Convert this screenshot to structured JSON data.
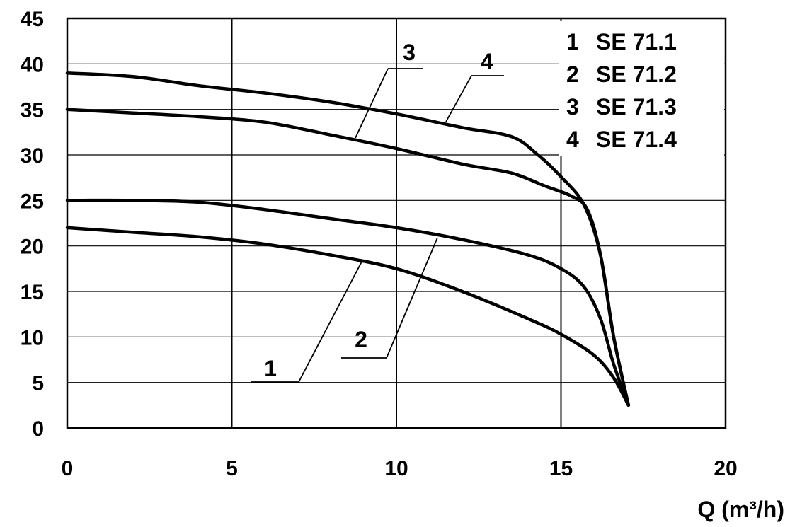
{
  "chart_data": {
    "type": "line",
    "title": "",
    "xlabel": "Q (m³/h)",
    "ylabel": "",
    "xlim": [
      0,
      20
    ],
    "ylim": [
      0,
      45
    ],
    "x_ticks": [
      "0",
      "5",
      "10",
      "15",
      "20"
    ],
    "y_ticks": [
      "0",
      "5",
      "10",
      "15",
      "20",
      "25",
      "30",
      "35",
      "40",
      "45"
    ],
    "grid": true,
    "legend": {
      "placement": "top-right",
      "entries": [
        {
          "number": "1",
          "name": "SE 71.1"
        },
        {
          "number": "2",
          "name": "SE 71.2"
        },
        {
          "number": "3",
          "name": "SE 71.3"
        },
        {
          "number": "4",
          "name": "SE 71.4"
        }
      ]
    },
    "series": [
      {
        "name": "1",
        "x": [
          0,
          2,
          4,
          6,
          8,
          10,
          12,
          14,
          15,
          16,
          16.6,
          17.05
        ],
        "y": [
          22,
          21.5,
          21,
          20.2,
          19,
          17.5,
          15,
          12,
          10.3,
          8,
          5.5,
          2.5
        ]
      },
      {
        "name": "2",
        "x": [
          0,
          2,
          4,
          6,
          8,
          10,
          12,
          14,
          15,
          15.7,
          16.2,
          16.6,
          17.05
        ],
        "y": [
          25,
          25,
          24.8,
          24,
          23,
          22,
          20.7,
          19,
          17.5,
          15.5,
          12,
          7,
          2.5
        ]
      },
      {
        "name": "3",
        "x": [
          0,
          2,
          4,
          6,
          8,
          10,
          12,
          13.5,
          14.5,
          15.3,
          15.8,
          16.2,
          16.6,
          17.05
        ],
        "y": [
          35,
          34.6,
          34.2,
          33.6,
          32.2,
          30.7,
          29,
          28,
          26.6,
          25.5,
          24,
          19,
          10,
          2.5
        ]
      },
      {
        "name": "4",
        "x": [
          0,
          2,
          4,
          6,
          8,
          10,
          12,
          13.5,
          14.3,
          15,
          15.7,
          16.2,
          16.6,
          17.05
        ],
        "y": [
          39,
          38.6,
          37.6,
          36.8,
          35.8,
          34.5,
          33,
          32,
          30,
          27.6,
          24.5,
          19,
          10,
          2.5
        ]
      }
    ],
    "callouts": [
      {
        "label": "1",
        "series": "1"
      },
      {
        "label": "2",
        "series": "2"
      },
      {
        "label": "3",
        "series": "3"
      },
      {
        "label": "4",
        "series": "4"
      }
    ]
  }
}
